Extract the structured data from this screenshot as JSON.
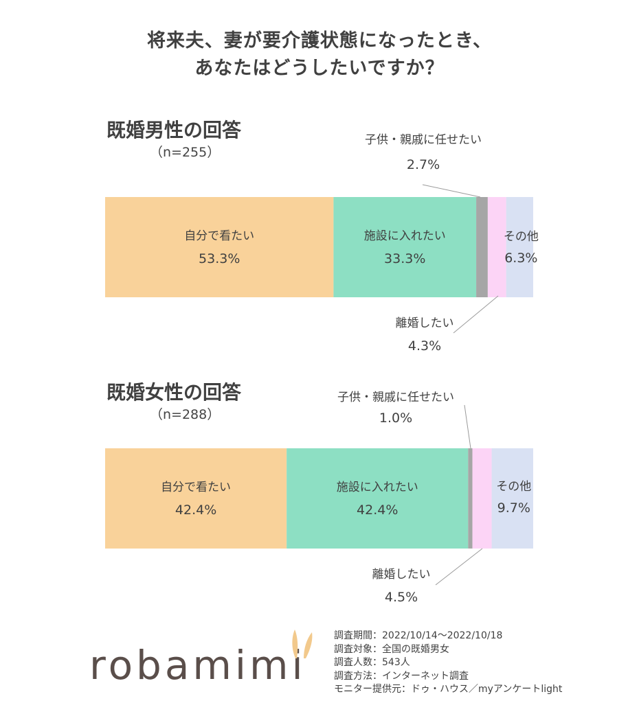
{
  "title_lines": [
    "将来夫、妻が要介護状態になったとき、",
    "あなたはどうしたいですか？"
  ],
  "chart_data": [
    {
      "type": "bar",
      "stacked": true,
      "orientation": "horizontal",
      "title": "既婚男性の回答",
      "n_label": "（n=255）",
      "unit": "%",
      "categories": [
        "自分で看たい",
        "施設に入れたい",
        "子供・親戚に任せたい",
        "離婚したい",
        "その他"
      ],
      "values": [
        53.3,
        33.3,
        2.7,
        4.3,
        6.3
      ],
      "value_labels": [
        "53.3%",
        "33.3%",
        "2.7%",
        "4.3%",
        "6.3%"
      ]
    },
    {
      "type": "bar",
      "stacked": true,
      "orientation": "horizontal",
      "title": "既婚女性の回答",
      "n_label": "（n=288）",
      "unit": "%",
      "categories": [
        "自分で看たい",
        "施設に入れたい",
        "子供・親戚に任せたい",
        "離婚したい",
        "その他"
      ],
      "values": [
        42.4,
        42.4,
        1.0,
        4.5,
        9.7
      ],
      "value_labels": [
        "42.4%",
        "42.4%",
        "1.0%",
        "4.5%",
        "9.7%"
      ]
    }
  ],
  "colors": [
    "#f9d29a",
    "#8ddfc3",
    "#a6a6a6",
    "#fcd4f6",
    "#d9e1f3"
  ],
  "logo": {
    "text": "robamimi"
  },
  "survey_info": [
    "調査期間：2022/10/14～2022/10/18",
    "調査対象：全国の既婚男女",
    "調査人数：543人",
    "調査方法：インターネット調査",
    "モニター提供元：ドゥ・ハウス／myアンケートlight"
  ]
}
